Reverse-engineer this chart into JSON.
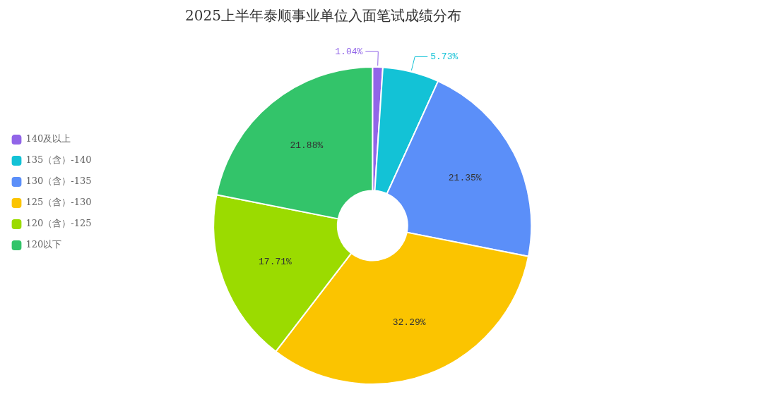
{
  "chart_data": {
    "type": "donut",
    "title": "2025上半年泰顺事业单位入面笔试成绩分布",
    "categories": [
      "140及以上",
      "135（含）-140",
      "130（含）-135",
      "125（含）-130",
      "120（含）-125",
      "120以下"
    ],
    "values": [
      1.04,
      5.73,
      21.35,
      32.29,
      17.71,
      21.88
    ],
    "colors": [
      "#9165e8",
      "#13c2d6",
      "#5b8ff9",
      "#fbc400",
      "#9bdb00",
      "#33c46a"
    ],
    "value_labels": [
      "1.04%",
      "5.73%",
      "21.35%",
      "32.29%",
      "17.71%",
      "21.88%"
    ],
    "legend": "left"
  }
}
